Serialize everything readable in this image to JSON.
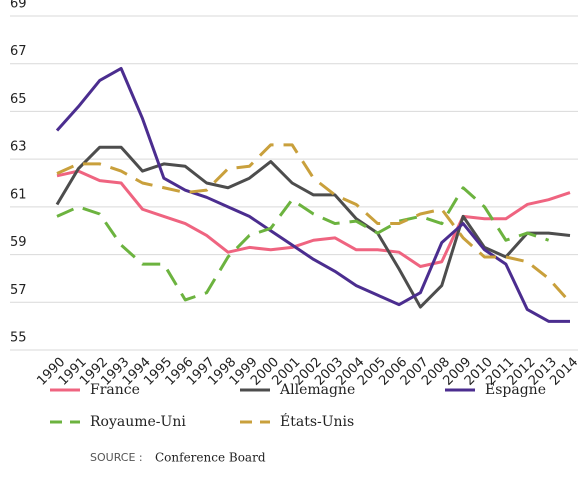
{
  "chart_data": {
    "type": "line",
    "categories": [
      "1990",
      "1991",
      "1992",
      "1993",
      "1994",
      "1995",
      "1996",
      "1997",
      "1998",
      "1999",
      "2000",
      "2001",
      "2002",
      "2003",
      "2004",
      "2005",
      "2006",
      "2007",
      "2008",
      "2009",
      "2010",
      "2011",
      "2012",
      "2013",
      "2014"
    ],
    "series": [
      {
        "name": "France",
        "color": "#ef6480",
        "dashed": false,
        "values": [
          62.3,
          62.5,
          62.1,
          62.0,
          60.9,
          60.6,
          60.3,
          59.8,
          59.1,
          59.3,
          59.2,
          59.3,
          59.6,
          59.7,
          59.2,
          59.2,
          59.1,
          58.5,
          58.7,
          60.6,
          60.5,
          60.5,
          61.1,
          61.3,
          61.6
        ]
      },
      {
        "name": "Allemagne",
        "color": "#4d4d4d",
        "dashed": false,
        "values": [
          61.1,
          62.6,
          63.5,
          63.5,
          62.5,
          62.8,
          62.7,
          62.0,
          61.8,
          62.2,
          62.9,
          62.0,
          61.5,
          61.5,
          60.5,
          59.9,
          58.4,
          56.8,
          57.7,
          60.6,
          59.3,
          58.9,
          59.9,
          59.9,
          59.8
        ]
      },
      {
        "name": "Espagne",
        "color": "#4b2d8f",
        "dashed": false,
        "values": [
          64.2,
          65.2,
          66.3,
          66.8,
          64.7,
          62.2,
          61.7,
          61.4,
          61.0,
          60.6,
          60.0,
          59.4,
          58.8,
          58.3,
          57.7,
          57.3,
          56.9,
          57.4,
          59.5,
          60.3,
          59.2,
          58.6,
          56.7,
          56.2,
          56.2
        ]
      },
      {
        "name": "Royaume-Uni",
        "color": "#6cb33f",
        "dashed": true,
        "values": [
          60.6,
          61.0,
          60.7,
          59.4,
          58.6,
          58.6,
          57.1,
          57.4,
          58.9,
          59.8,
          60.1,
          61.3,
          60.7,
          60.3,
          60.4,
          59.9,
          60.4,
          60.6,
          60.3,
          61.8,
          61.0,
          59.6,
          59.9,
          59.6,
          null
        ]
      },
      {
        "name": "États-Unis",
        "color": "#c9a03c",
        "dashed": true,
        "values": [
          62.4,
          62.8,
          62.8,
          62.5,
          62.0,
          61.8,
          61.6,
          61.7,
          62.6,
          62.7,
          63.6,
          63.6,
          62.2,
          61.5,
          61.1,
          60.3,
          60.3,
          60.7,
          60.9,
          59.7,
          58.9,
          58.9,
          58.7,
          58.0,
          57.0
        ]
      }
    ],
    "ylim": [
      55,
      69
    ],
    "yticks": [
      55,
      57,
      59,
      61,
      63,
      65,
      67,
      69
    ],
    "grid": true,
    "source": {
      "label": "SOURCE :",
      "text": "Conference Board"
    }
  }
}
